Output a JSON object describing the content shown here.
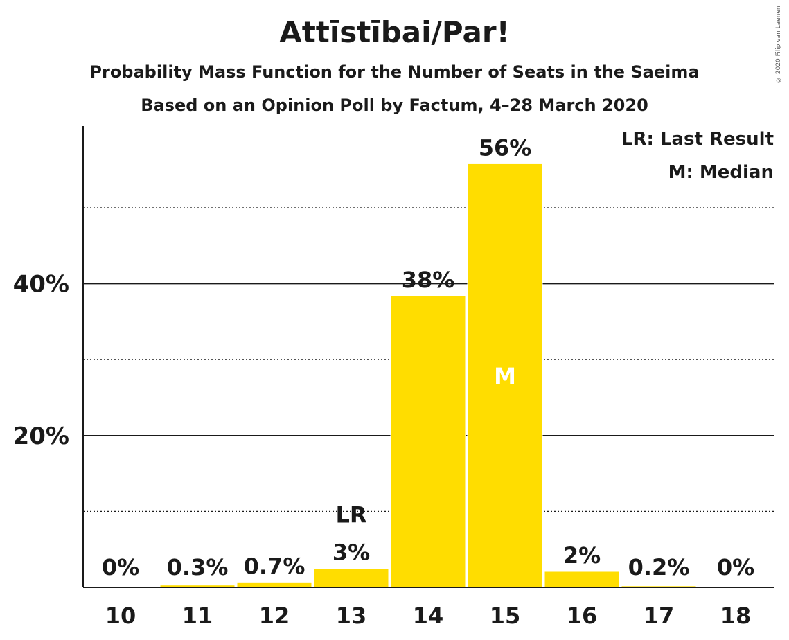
{
  "header": {
    "title": "Attīstībai/Par!",
    "subtitle1": "Probability Mass Function for the Number of Seats in the Saeima",
    "subtitle2": "Based on an Opinion Poll by Factum, 4–28 March 2020"
  },
  "copyright": "© 2020 Filip van Laenen",
  "legend": {
    "lr": "LR: Last Result",
    "m": "M: Median"
  },
  "colors": {
    "bar": "#FFDD00",
    "text": "#1a1a1a"
  },
  "chart_data": {
    "type": "bar",
    "categories": [
      "10",
      "11",
      "12",
      "13",
      "14",
      "15",
      "16",
      "17",
      "18"
    ],
    "values": [
      0,
      0.3,
      0.7,
      2.5,
      38.4,
      55.8,
      2.1,
      0.2,
      0
    ],
    "data_labels": [
      "0%",
      "0.3%",
      "0.7%",
      "3%",
      "38%",
      "56%",
      "2%",
      "0.2%",
      "0%"
    ],
    "y_ticks": [
      {
        "value": 20,
        "label": "20%"
      },
      {
        "value": 40,
        "label": "40%"
      }
    ],
    "minor_gridlines": [
      10,
      30,
      50
    ],
    "ylim": [
      0,
      60
    ],
    "last_result": {
      "category": "13",
      "label": "LR"
    },
    "median": {
      "category": "15",
      "label": "M"
    },
    "legend_position": "top-right"
  }
}
